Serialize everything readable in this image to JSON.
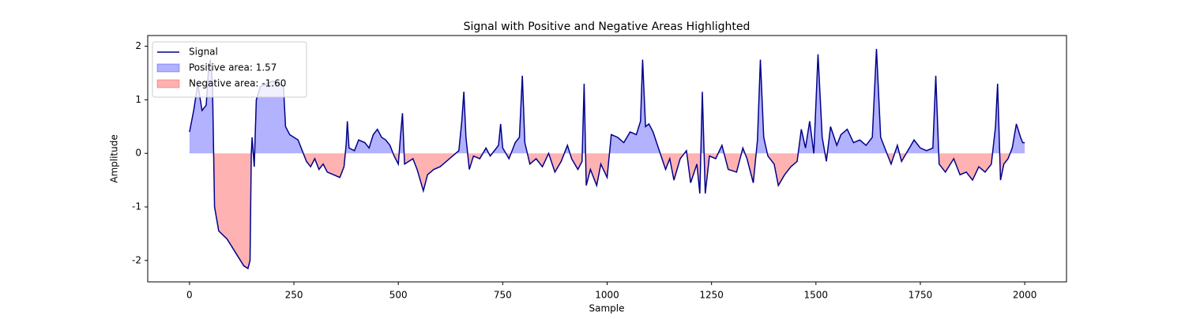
{
  "chart_data": {
    "type": "line",
    "title": "Signal with Positive and Negative Areas Highlighted",
    "xlabel": "Sample",
    "ylabel": "Amplitude",
    "x": [
      0,
      10,
      20,
      30,
      40,
      45,
      50,
      55,
      60,
      70,
      90,
      110,
      130,
      140,
      145,
      148,
      150,
      155,
      160,
      170,
      185,
      200,
      215,
      225,
      230,
      240,
      260,
      270,
      280,
      290,
      300,
      310,
      320,
      330,
      345,
      360,
      370,
      375,
      378,
      382,
      395,
      405,
      420,
      430,
      440,
      450,
      460,
      470,
      480,
      490,
      500,
      505,
      510,
      515,
      525,
      535,
      545,
      560,
      570,
      585,
      600,
      615,
      630,
      645,
      652,
      657,
      662,
      670,
      680,
      695,
      710,
      720,
      740,
      745,
      750,
      765,
      780,
      790,
      797,
      803,
      815,
      830,
      845,
      860,
      875,
      890,
      905,
      915,
      930,
      940,
      945,
      950,
      960,
      975,
      985,
      1000,
      1010,
      1025,
      1040,
      1055,
      1070,
      1080,
      1085,
      1092,
      1100,
      1110,
      1125,
      1140,
      1150,
      1160,
      1175,
      1190,
      1200,
      1215,
      1222,
      1228,
      1235,
      1245,
      1260,
      1275,
      1290,
      1310,
      1325,
      1335,
      1350,
      1360,
      1367,
      1375,
      1385,
      1400,
      1410,
      1425,
      1440,
      1455,
      1465,
      1475,
      1485,
      1495,
      1505,
      1515,
      1525,
      1535,
      1550,
      1560,
      1575,
      1590,
      1605,
      1620,
      1635,
      1645,
      1655,
      1670,
      1680,
      1695,
      1705,
      1720,
      1735,
      1750,
      1765,
      1780,
      1787,
      1795,
      1810,
      1830,
      1845,
      1860,
      1875,
      1890,
      1905,
      1920,
      1930,
      1935,
      1942,
      1950,
      1960,
      1970,
      1980,
      1990,
      1995,
      2000
    ],
    "series": [
      {
        "name": "Signal",
        "color": "#00008b",
        "values": [
          0.4,
          0.8,
          1.3,
          0.8,
          0.9,
          1.5,
          1.75,
          1.3,
          -1.0,
          -1.45,
          -1.6,
          -1.85,
          -2.1,
          -2.15,
          -2.0,
          0,
          0.3,
          -0.25,
          1.0,
          1.25,
          1.3,
          1.35,
          1.3,
          1.25,
          0.5,
          0.35,
          0.25,
          0.05,
          -0.15,
          -0.25,
          -0.1,
          -0.3,
          -0.2,
          -0.35,
          -0.4,
          -0.45,
          -0.25,
          0.15,
          0.6,
          0.1,
          0.05,
          0.25,
          0.2,
          0.1,
          0.35,
          0.45,
          0.3,
          0.25,
          0.15,
          -0.05,
          -0.2,
          0.3,
          0.75,
          -0.2,
          -0.15,
          -0.1,
          -0.3,
          -0.7,
          -0.4,
          -0.3,
          -0.25,
          -0.15,
          -0.05,
          0.05,
          0.6,
          1.15,
          0.3,
          -0.3,
          -0.05,
          -0.1,
          0.1,
          -0.05,
          0.15,
          0.55,
          0.1,
          -0.1,
          0.2,
          0.3,
          1.45,
          0.2,
          -0.2,
          -0.1,
          -0.25,
          0.0,
          -0.35,
          -0.15,
          0.15,
          -0.1,
          -0.3,
          -0.15,
          1.3,
          -0.6,
          -0.3,
          -0.6,
          -0.2,
          -0.45,
          0.35,
          0.3,
          0.2,
          0.4,
          0.35,
          0.6,
          1.75,
          0.5,
          0.55,
          0.4,
          0.05,
          -0.3,
          -0.1,
          -0.5,
          -0.1,
          0.05,
          -0.55,
          -0.2,
          -0.75,
          1.15,
          -0.75,
          -0.05,
          -0.1,
          0.15,
          -0.3,
          -0.35,
          0.1,
          -0.1,
          -0.55,
          0.25,
          1.75,
          0.3,
          -0.05,
          -0.2,
          -0.6,
          -0.4,
          -0.25,
          -0.15,
          0.45,
          0.1,
          0.6,
          0.0,
          1.85,
          0.3,
          -0.15,
          0.5,
          0.15,
          0.35,
          0.45,
          0.2,
          0.25,
          0.15,
          0.3,
          1.95,
          0.3,
          0.0,
          -0.2,
          0.15,
          -0.15,
          0.05,
          0.25,
          0.1,
          0.05,
          0.1,
          1.45,
          -0.2,
          -0.35,
          -0.1,
          -0.4,
          -0.35,
          -0.5,
          -0.25,
          -0.35,
          -0.2,
          0.5,
          1.3,
          -0.5,
          -0.2,
          -0.1,
          0.1,
          0.55,
          0.3,
          0.2,
          0.2
        ]
      }
    ],
    "fill_above": {
      "name": "Positive area: 1.57",
      "color": "#0000ff"
    },
    "fill_below": {
      "name": "Negative area: -1.60",
      "color": "#ff0000"
    },
    "xlim": [
      -100,
      2100
    ],
    "xticks": [
      0,
      250,
      500,
      750,
      1000,
      1250,
      1500,
      1750,
      2000
    ],
    "ylim": [
      -2.4,
      2.2
    ],
    "yticks": [
      -2,
      -1,
      0,
      1,
      2
    ],
    "legend": "upper left"
  }
}
